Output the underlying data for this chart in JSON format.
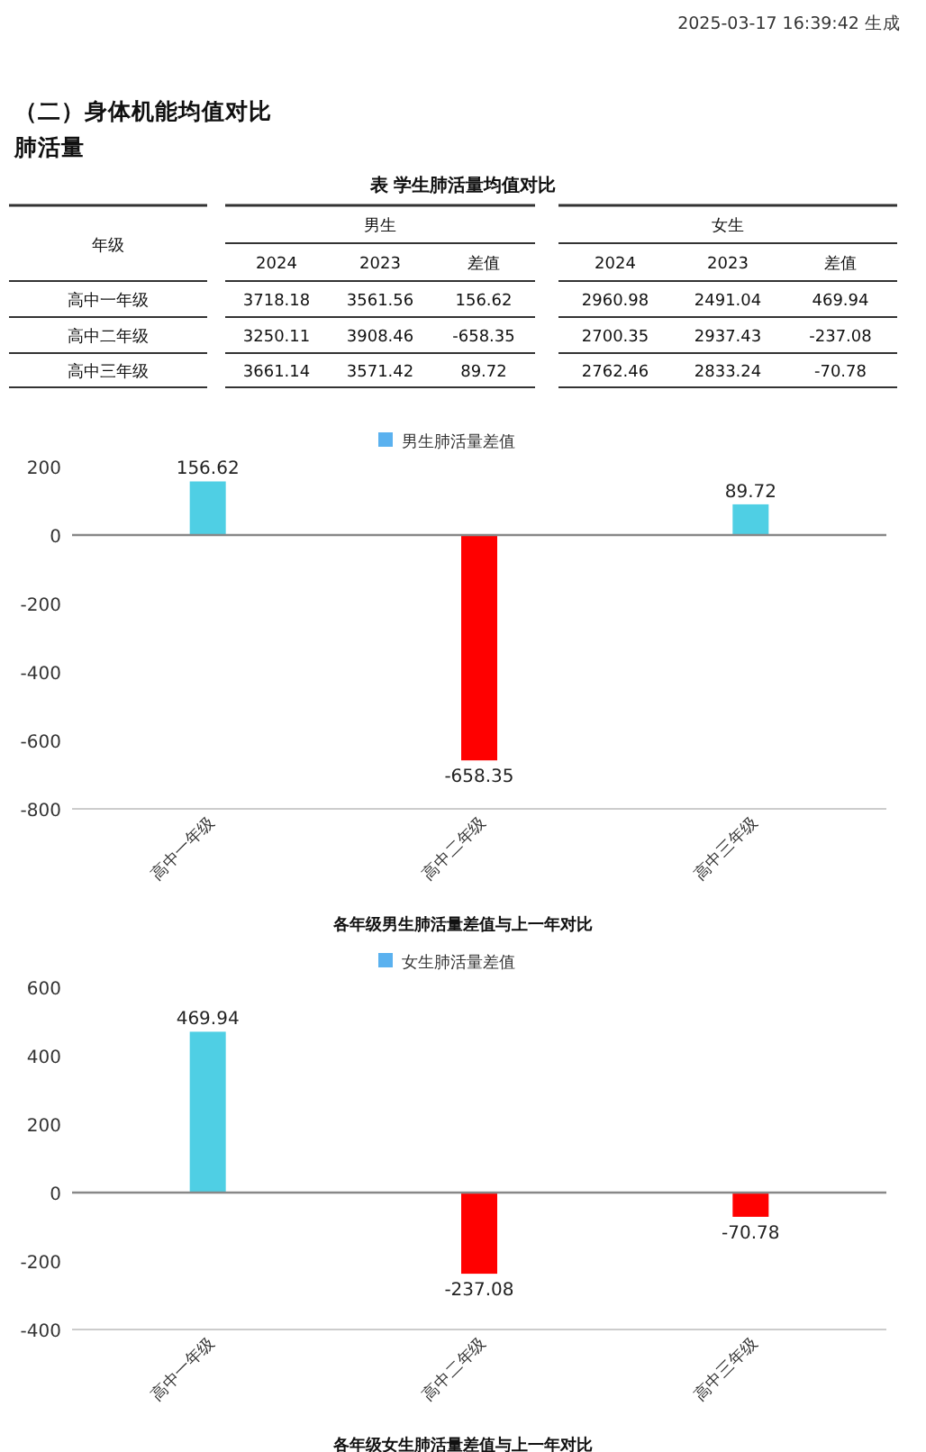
{
  "chart_data": [
    {
      "type": "other",
      "title": "表 学生肺活量均值对比",
      "annotations": [
        "2025-03-17 16:39:42 生成",
        "（二）身体机能均值对比",
        "肺活量",
        "年级",
        "男生",
        "女生",
        "2024",
        "2023",
        "差值",
        "2024",
        "2023",
        "差值",
        "高中一年级",
        "3718.18",
        "3561.56",
        "156.62",
        "2960.98",
        "2491.04",
        "469.94",
        "高中二年级",
        "3250.11",
        "3908.46",
        "-658.35",
        "2700.35",
        "2937.43",
        "-237.08",
        "高中三年级",
        "3661.14",
        "3571.42",
        "89.72",
        "2762.46",
        "2833.24",
        "-70.78"
      ]
    },
    {
      "type": "bar",
      "title": "各年级男生肺活量差值与上一年对比",
      "categories": [
        "高中一年级",
        "高中二年级",
        "高中三年级"
      ],
      "series": [
        {
          "name": "男生肺活量差值",
          "color": "#5ab1ef",
          "colors": [
            "#4fcfe4",
            "#ff0000",
            "#4fcfe4"
          ],
          "values": [
            156.62,
            -658.35,
            89.72
          ]
        }
      ],
      "ylim": [
        -800,
        200
      ],
      "yticks": [
        -800,
        -600,
        -400,
        -200,
        0,
        200
      ],
      "data_labels": true,
      "legend": "top"
    },
    {
      "type": "bar",
      "title": "各年级女生肺活量差值与上一年对比",
      "categories": [
        "高中一年级",
        "高中二年级",
        "高中三年级"
      ],
      "series": [
        {
          "name": "女生肺活量差值",
          "color": "#5ab1ef",
          "colors": [
            "#4fcfe4",
            "#ff0000",
            "#ff0000"
          ],
          "values": [
            469.94,
            -237.08,
            -70.78
          ]
        }
      ],
      "ylim": [
        -400,
        600
      ],
      "yticks": [
        -400,
        -200,
        0,
        200,
        400,
        600
      ],
      "data_labels": true,
      "legend": "top"
    }
  ]
}
